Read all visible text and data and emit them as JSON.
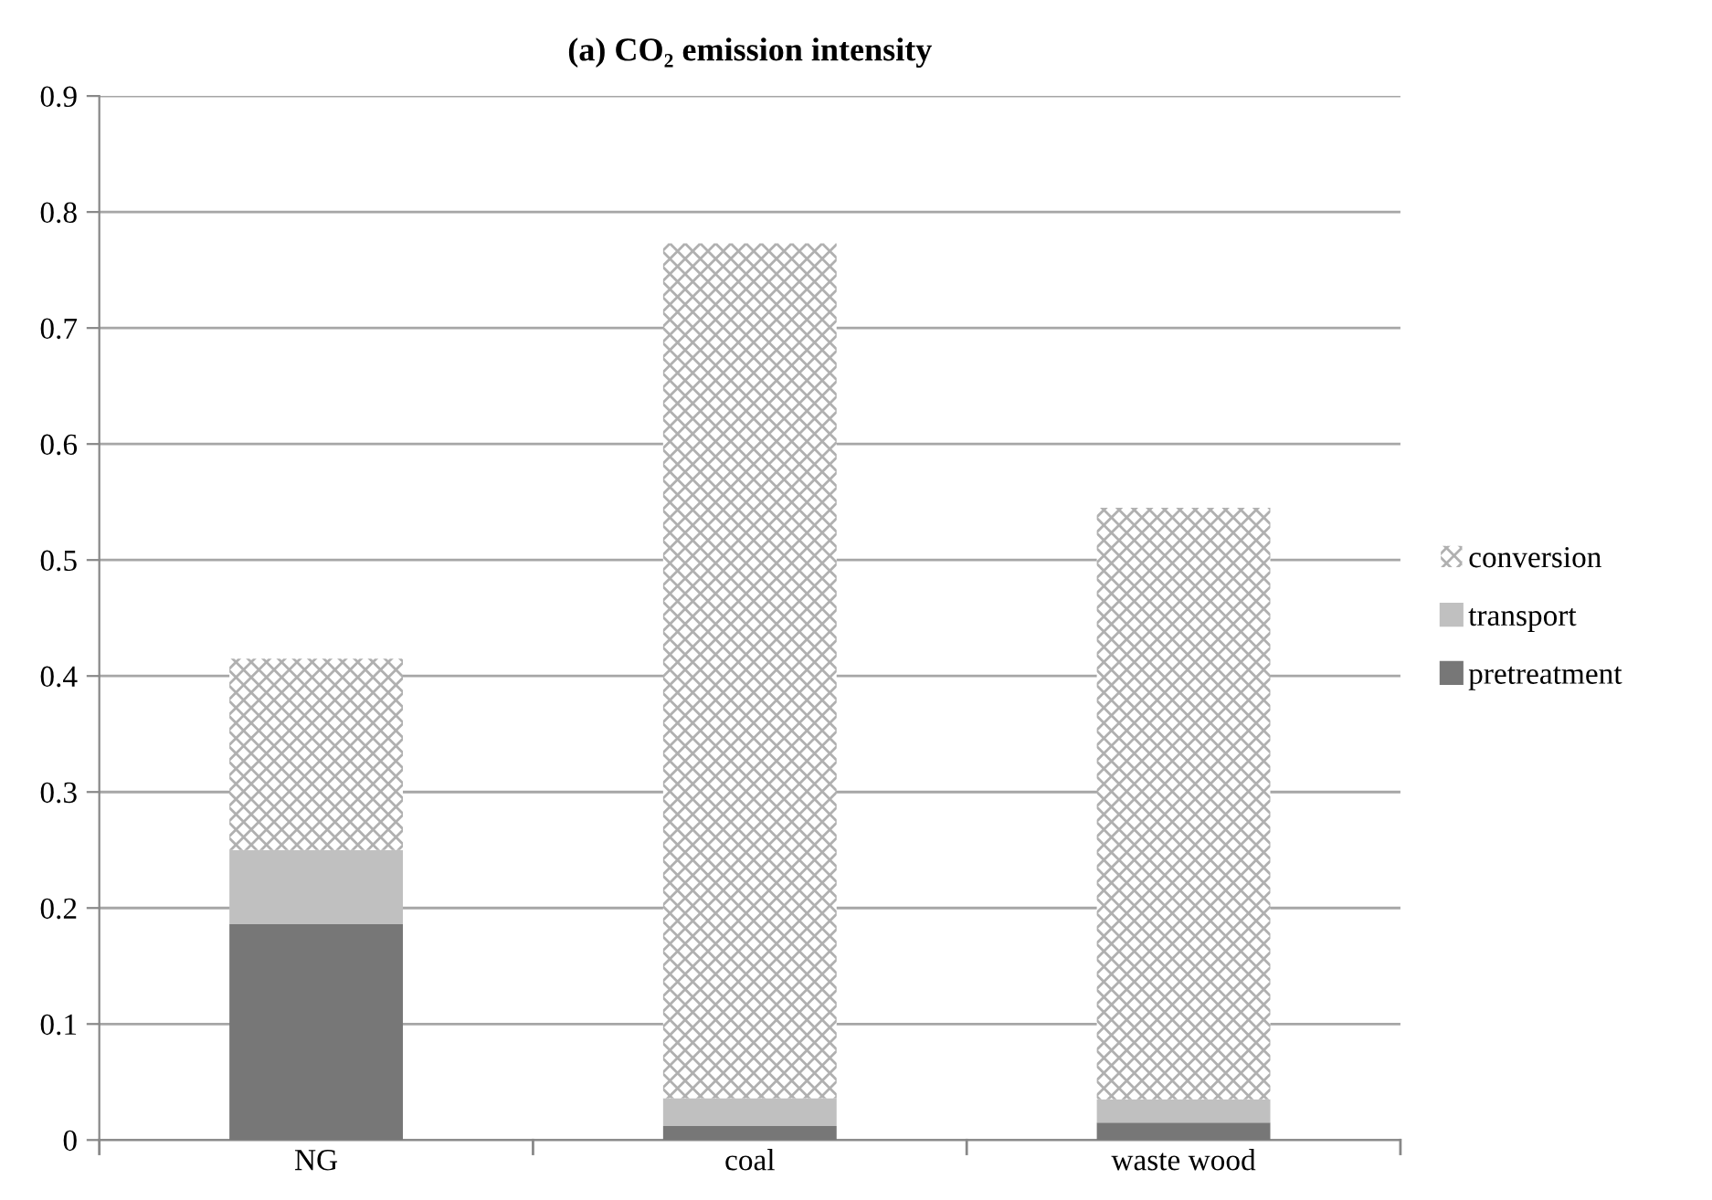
{
  "chart_data": {
    "type": "bar",
    "title": "(a) CO₂ emission intensity",
    "stacked": true,
    "categories": [
      "NG",
      "coal",
      "waste wood"
    ],
    "series": [
      {
        "name": "pretreatment",
        "color": "#777777",
        "values": [
          0.186,
          0.012,
          0.015
        ]
      },
      {
        "name": "transport",
        "color": "#c0c0c0",
        "values": [
          0.064,
          0.024,
          0.02
        ]
      },
      {
        "name": "conversion",
        "color": "#b0b0b0",
        "values": [
          0.165,
          0.737,
          0.51
        ]
      }
    ],
    "ylim": [
      0,
      0.9
    ],
    "yticks": [
      0,
      0.1,
      0.2,
      0.3,
      0.4,
      0.5,
      0.6,
      0.7,
      0.8,
      0.9
    ],
    "grid": "y",
    "legend": "right"
  }
}
